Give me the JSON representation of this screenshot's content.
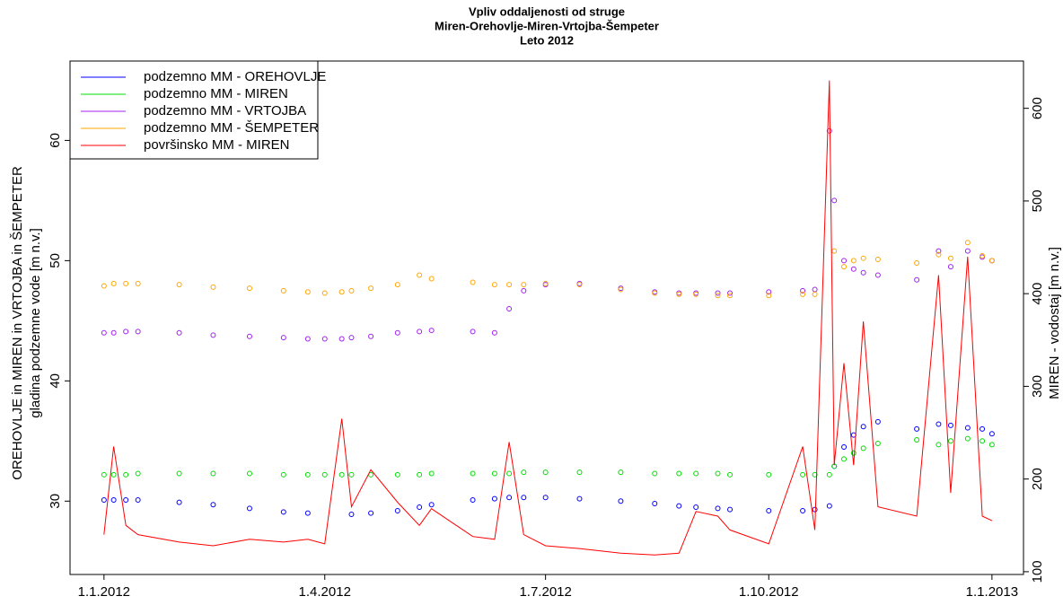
{
  "chart_data": {
    "type": "line",
    "title": "Vpliv oddaljenosti od struge",
    "subtitle": "Miren-Orehovlje-Miren-Vrtojba-Šempeter",
    "subtitle2": "Leto 2012",
    "ylabel": "OREHOVLJE in MIREN in VRTOJBA in ŠEMPETER",
    "ylabel2": "gladina podzemne vode [m n.v.]",
    "y2label": "MIREN - vodostaj [m n.v.]",
    "legend": "top-left",
    "x": [
      "1.1.2012",
      "5.1.2012",
      "10.1.2012",
      "15.1.2012",
      "1.2.2012",
      "15.2.2012",
      "1.3.2012",
      "15.3.2012",
      "25.3.2012",
      "1.4.2012",
      "8.4.2012",
      "12.4.2012",
      "20.4.2012",
      "1.5.2012",
      "10.5.2012",
      "15.5.2012",
      "1.6.2012",
      "10.6.2012",
      "16.6.2012",
      "22.6.2012",
      "1.7.2012",
      "15.7.2012",
      "1.8.2012",
      "15.8.2012",
      "25.8.2012",
      "1.9.2012",
      "10.9.2012",
      "15.9.2012",
      "1.10.2012",
      "15.10.2012",
      "20.10.2012",
      "26.10.2012",
      "28.10.2012",
      "1.11.2012",
      "5.11.2012",
      "9.11.2012",
      "15.11.2012",
      "1.12.2012",
      "10.12.2012",
      "15.12.2012",
      "22.12.2012",
      "28.12.2012",
      "1.1.2013"
    ],
    "xlim": [
      "18.12.2011",
      "14.1.2013"
    ],
    "xticks": [
      "1.1.2012",
      "1.4.2012",
      "1.7.2012",
      "1.10.2012",
      "1.1.2013"
    ],
    "ylim": [
      23.9,
      66.6
    ],
    "yticks": [
      30,
      40,
      50,
      60
    ],
    "y2lim": [
      97,
      651
    ],
    "y2ticks": [
      100,
      200,
      300,
      400,
      500,
      600
    ],
    "series": [
      {
        "name": "podzemno MM - OREHOVLJE",
        "color": "#0000ff",
        "marker": "circle",
        "values": [
          30.1,
          30.1,
          30.1,
          30.1,
          29.9,
          29.7,
          29.4,
          29.1,
          29.0,
          null,
          null,
          28.9,
          29.0,
          29.2,
          29.5,
          29.7,
          30.1,
          30.2,
          30.3,
          30.3,
          30.3,
          30.2,
          30.0,
          29.8,
          29.6,
          29.5,
          29.4,
          29.3,
          29.2,
          29.2,
          29.3,
          29.6,
          32.9,
          34.5,
          35.5,
          36.2,
          36.6,
          36.0,
          36.4,
          36.3,
          36.1,
          36.0,
          35.6
        ]
      },
      {
        "name": "podzemno MM - MIREN",
        "color": "#00dd00",
        "marker": "circle",
        "values": [
          32.2,
          32.2,
          32.2,
          32.3,
          32.3,
          32.3,
          32.3,
          32.2,
          32.2,
          32.2,
          32.2,
          32.2,
          32.2,
          32.2,
          32.2,
          32.3,
          32.3,
          32.3,
          32.3,
          32.4,
          32.4,
          32.4,
          32.4,
          32.3,
          32.3,
          32.3,
          32.3,
          32.2,
          32.2,
          32.2,
          32.2,
          32.2,
          32.9,
          33.5,
          34.0,
          34.4,
          34.8,
          35.1,
          34.7,
          35.0,
          35.2,
          35.0,
          34.7
        ]
      },
      {
        "name": "podzemno MM - VRTOJBA",
        "color": "#a020f0",
        "marker": "circle",
        "values": [
          44.0,
          44.0,
          44.1,
          44.1,
          44.0,
          43.8,
          43.7,
          43.6,
          43.5,
          43.5,
          43.5,
          43.6,
          43.7,
          44.0,
          44.1,
          44.2,
          44.1,
          44.0,
          46.0,
          47.5,
          48.0,
          48.1,
          47.7,
          47.4,
          47.3,
          47.3,
          47.3,
          47.3,
          47.4,
          47.5,
          47.6,
          60.8,
          55.0,
          50.0,
          49.3,
          49.0,
          48.8,
          48.4,
          50.8,
          49.5,
          50.8,
          50.3,
          50.0
        ]
      },
      {
        "name": "podzemno MM - ŠEMPETER",
        "color": "#ffa500",
        "marker": "circle",
        "values": [
          47.9,
          48.1,
          48.1,
          48.1,
          48.0,
          47.8,
          47.7,
          47.5,
          47.4,
          47.3,
          47.4,
          47.5,
          47.7,
          48.0,
          48.8,
          48.5,
          48.2,
          48.0,
          48.0,
          48.0,
          48.1,
          48.0,
          47.6,
          47.3,
          47.2,
          47.2,
          47.1,
          47.1,
          47.1,
          47.2,
          47.2,
          null,
          50.8,
          49.5,
          50.0,
          50.2,
          50.1,
          49.8,
          50.5,
          50.2,
          51.5,
          50.4,
          50.0
        ]
      },
      {
        "name": "površinsko MM - MIREN",
        "color": "#ff0000",
        "marker": "line",
        "axis": "y2",
        "values": [
          140,
          235,
          150,
          140,
          132,
          128,
          135,
          132,
          135,
          130,
          265,
          170,
          210,
          175,
          150,
          168,
          138,
          135,
          240,
          140,
          128,
          125,
          120,
          118,
          120,
          165,
          160,
          145,
          130,
          235,
          145,
          630,
          215,
          325,
          215,
          370,
          170,
          160,
          420,
          185,
          440,
          160,
          155
        ]
      }
    ]
  }
}
